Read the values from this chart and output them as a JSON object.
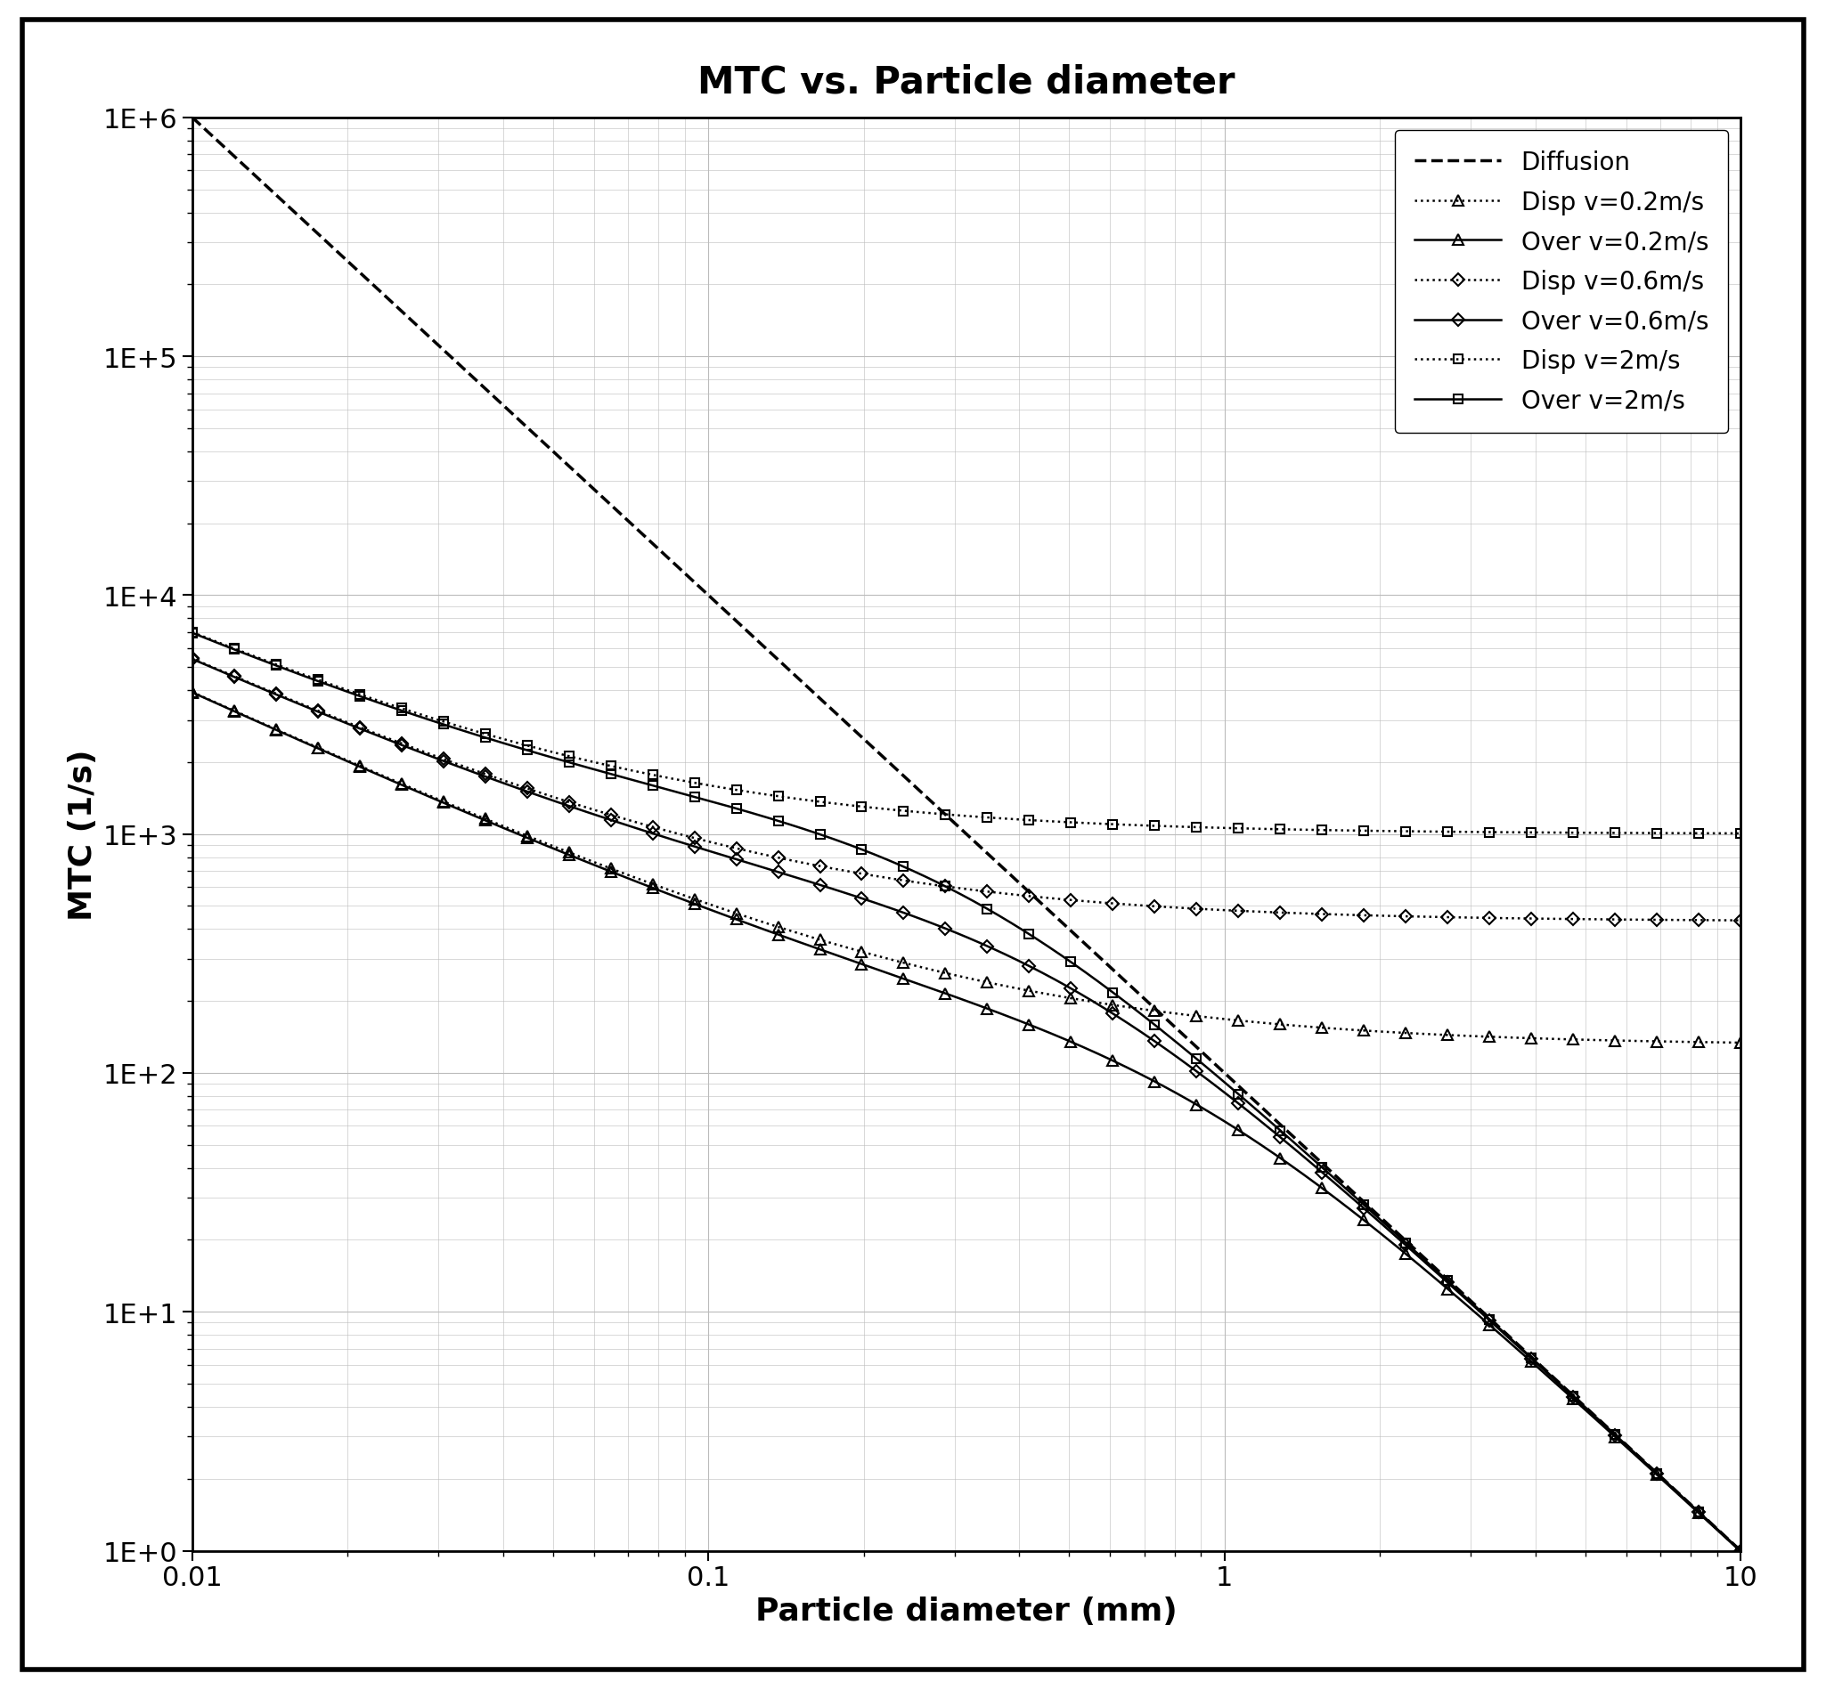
{
  "title": "MTC vs. Particle diameter",
  "xlabel": "Particle diameter (mm)",
  "ylabel": "MTC (1/s)",
  "xlim": [
    0.01,
    10
  ],
  "ylim": [
    1,
    1000000
  ],
  "background_color": "#ffffff",
  "grid_color": "#bbbbbb",
  "A_diff": 100.0,
  "disp_params": [
    {
      "alpha": 13.0,
      "plateau": 1100.0,
      "v_label": "2m/s"
    },
    {
      "alpha": 5.5,
      "plateau": 430.0,
      "v_label": "0.6m/s"
    },
    {
      "alpha": 1.4,
      "plateau": 145.0,
      "v_label": "0.2m/s"
    }
  ],
  "dp_dense": null,
  "legend": [
    "Diffusion",
    "Disp v=0.2m/s",
    "Over v=0.2m/s",
    "Disp v=0.6m/s",
    "Over v=0.6m/s",
    "Disp v=2m/s",
    "Over v=2m/s"
  ]
}
